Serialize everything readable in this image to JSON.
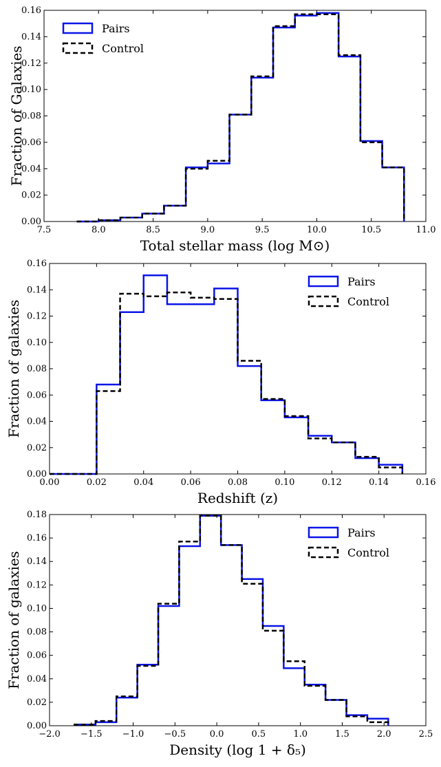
{
  "chart_data": [
    {
      "type": "step-histogram",
      "title": "",
      "xlabel": "Total stellar mass (log M⊙)",
      "ylabel": "Fraction of Galaxies",
      "xlim": [
        7.5,
        11.0
      ],
      "ylim": [
        0.0,
        0.16
      ],
      "xticks": [
        7.5,
        8.0,
        8.5,
        9.0,
        9.5,
        10.0,
        10.5,
        11.0
      ],
      "xtick_labels": [
        "7.5",
        "8.0",
        "8.5",
        "9.0",
        "9.5",
        "10.0",
        "10.5",
        "11.0"
      ],
      "yticks": [
        0.0,
        0.02,
        0.04,
        0.06,
        0.08,
        0.1,
        0.12,
        0.14,
        0.16
      ],
      "ytick_labels": [
        "0.00",
        "0.02",
        "0.04",
        "0.06",
        "0.08",
        "0.10",
        "0.12",
        "0.14",
        "0.16"
      ],
      "legend_position": "top-left",
      "bin_edges": [
        7.8,
        8.0,
        8.2,
        8.4,
        8.6,
        8.8,
        9.0,
        9.2,
        9.4,
        9.6,
        9.8,
        10.0,
        10.2,
        10.4,
        10.6,
        10.8
      ],
      "series": [
        {
          "name": "Pairs",
          "color": "#0a14e6",
          "style": "solid",
          "values": [
            0.0,
            0.001,
            0.003,
            0.006,
            0.012,
            0.041,
            0.044,
            0.081,
            0.109,
            0.147,
            0.156,
            0.158,
            0.125,
            0.061,
            0.041
          ]
        },
        {
          "name": "Control",
          "color": "#000000",
          "style": "dashed",
          "values": [
            0.0,
            0.001,
            0.003,
            0.006,
            0.012,
            0.04,
            0.046,
            0.081,
            0.11,
            0.148,
            0.157,
            0.157,
            0.126,
            0.06,
            0.041
          ]
        }
      ]
    },
    {
      "type": "step-histogram",
      "title": "",
      "xlabel": "Redshift (z)",
      "ylabel": "Fraction of galaxies",
      "xlim": [
        0.0,
        0.16
      ],
      "ylim": [
        0.0,
        0.16
      ],
      "xticks": [
        0.0,
        0.02,
        0.04,
        0.06,
        0.08,
        0.1,
        0.12,
        0.14,
        0.16
      ],
      "xtick_labels": [
        "0.00",
        "0.02",
        "0.04",
        "0.06",
        "0.08",
        "0.10",
        "0.12",
        "0.14",
        "0.16"
      ],
      "yticks": [
        0.0,
        0.02,
        0.04,
        0.06,
        0.08,
        0.1,
        0.12,
        0.14,
        0.16
      ],
      "ytick_labels": [
        "0.00",
        "0.02",
        "0.04",
        "0.06",
        "0.08",
        "0.10",
        "0.12",
        "0.14",
        "0.16"
      ],
      "legend_position": "top-right",
      "bin_edges": [
        0.0,
        0.02,
        0.03,
        0.04,
        0.05,
        0.06,
        0.07,
        0.08,
        0.09,
        0.1,
        0.11,
        0.12,
        0.13,
        0.14,
        0.15
      ],
      "series": [
        {
          "name": "Pairs",
          "color": "#0a14e6",
          "style": "solid",
          "values": [
            0.0,
            0.068,
            0.123,
            0.151,
            0.129,
            0.129,
            0.141,
            0.082,
            0.056,
            0.043,
            0.029,
            0.024,
            0.012,
            0.007
          ]
        },
        {
          "name": "Control",
          "color": "#000000",
          "style": "dashed",
          "values": [
            0.0,
            0.063,
            0.137,
            0.135,
            0.138,
            0.134,
            0.133,
            0.086,
            0.057,
            0.044,
            0.027,
            0.024,
            0.013,
            0.005
          ]
        }
      ]
    },
    {
      "type": "step-histogram",
      "title": "",
      "xlabel": "Density (log 1 + δ₅)",
      "ylabel": "Fraction of galaxies",
      "xlim": [
        -2.0,
        2.5
      ],
      "ylim": [
        0.0,
        0.18
      ],
      "xticks": [
        -2.0,
        -1.5,
        -1.0,
        -0.5,
        0.0,
        0.5,
        1.0,
        1.5,
        2.0,
        2.5
      ],
      "xtick_labels": [
        "−2.0",
        "−1.5",
        "−1.0",
        "−0.5",
        "0.0",
        "0.5",
        "1.0",
        "1.5",
        "2.0",
        "2.5"
      ],
      "yticks": [
        0.0,
        0.02,
        0.04,
        0.06,
        0.08,
        0.1,
        0.12,
        0.14,
        0.16,
        0.18
      ],
      "ytick_labels": [
        "0.00",
        "0.02",
        "0.04",
        "0.06",
        "0.08",
        "0.10",
        "0.12",
        "0.14",
        "0.16",
        "0.18"
      ],
      "legend_position": "top-right",
      "bin_edges": [
        -1.7,
        -1.45,
        -1.2,
        -0.95,
        -0.7,
        -0.45,
        -0.2,
        0.05,
        0.3,
        0.55,
        0.8,
        1.05,
        1.3,
        1.55,
        1.8,
        2.05
      ],
      "series": [
        {
          "name": "Pairs",
          "color": "#0a14e6",
          "style": "solid",
          "values": [
            0.001,
            0.003,
            0.024,
            0.052,
            0.102,
            0.153,
            0.179,
            0.154,
            0.125,
            0.085,
            0.049,
            0.035,
            0.022,
            0.009,
            0.006
          ]
        },
        {
          "name": "Control",
          "color": "#000000",
          "style": "dashed",
          "values": [
            0.001,
            0.004,
            0.025,
            0.051,
            0.104,
            0.157,
            0.179,
            0.154,
            0.121,
            0.081,
            0.055,
            0.034,
            0.022,
            0.008,
            0.003
          ]
        }
      ]
    }
  ]
}
